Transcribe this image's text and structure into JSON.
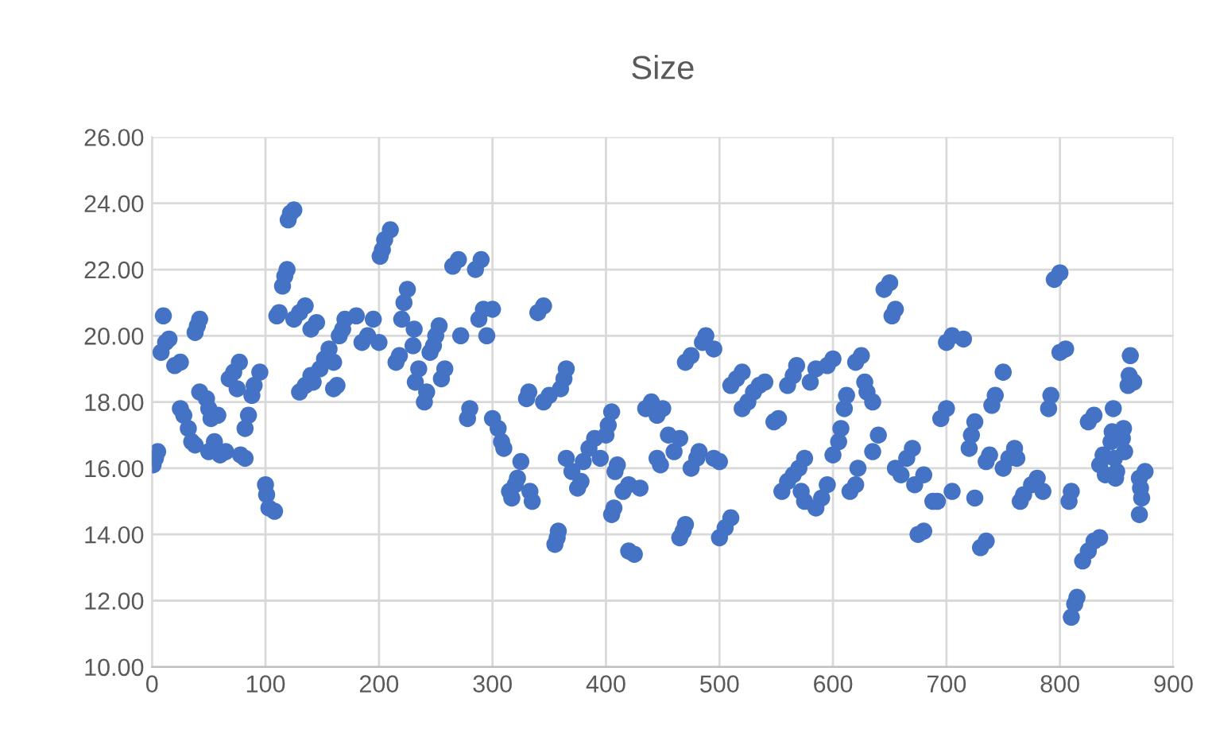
{
  "chart_data": {
    "type": "scatter",
    "title": "Size",
    "marker": "circle",
    "grid": true,
    "legend": false,
    "xlim": [
      0,
      900
    ],
    "xticks": [
      0,
      100,
      200,
      300,
      400,
      500,
      600,
      700,
      800,
      900
    ],
    "ylim": [
      10,
      26
    ],
    "yticks": [
      {
        "value": 10,
        "label": "10.00"
      },
      {
        "value": 12,
        "label": "12.00"
      },
      {
        "value": 14,
        "label": "14.00"
      },
      {
        "value": 16,
        "label": "16.00"
      },
      {
        "value": 18,
        "label": "18.00"
      },
      {
        "value": 20,
        "label": "20.00"
      },
      {
        "value": 22,
        "label": "22.00"
      },
      {
        "value": 24,
        "label": "24.00"
      },
      {
        "value": 26,
        "label": "26.00"
      }
    ],
    "series": [
      {
        "color": "#4472c4",
        "x": [
          1,
          3,
          5,
          8,
          10,
          12,
          15,
          20,
          25,
          25,
          28,
          32,
          35,
          38,
          38,
          40,
          42,
          42,
          48,
          50,
          52,
          50,
          55,
          58,
          60,
          65,
          68,
          72,
          77,
          75,
          78,
          82,
          82,
          85,
          88,
          90,
          95,
          100,
          101,
          103,
          108,
          110,
          112,
          115,
          117,
          119,
          120,
          122,
          125,
          125,
          130,
          135,
          130,
          135,
          140,
          140,
          145,
          142,
          148,
          152,
          156,
          160,
          160,
          163,
          165,
          168,
          170,
          180,
          185,
          190,
          195,
          200,
          201,
          203,
          205,
          210,
          215,
          218,
          220,
          222,
          225,
          230,
          231,
          232,
          235,
          240,
          242,
          245,
          248,
          250,
          253,
          255,
          258,
          265,
          270,
          272,
          278,
          280,
          285,
          290,
          288,
          292,
          295,
          300,
          300,
          305,
          308,
          310,
          315,
          317,
          320,
          322,
          325,
          330,
          332,
          333,
          335,
          340,
          345,
          345,
          350,
          355,
          357,
          358,
          360,
          363,
          365,
          365,
          370,
          375,
          378,
          380,
          385,
          390,
          395,
          400,
          402,
          405,
          408,
          410,
          405,
          407,
          415,
          420,
          420,
          425,
          430,
          435,
          440,
          445,
          450,
          445,
          448,
          455,
          460,
          465,
          465,
          468,
          470,
          470,
          475,
          475,
          480,
          482,
          485,
          488,
          495,
          495,
          500,
          500,
          505,
          510,
          510,
          515,
          520,
          520,
          525,
          530,
          535,
          540,
          548,
          552,
          555,
          560,
          565,
          560,
          565,
          568,
          570,
          575,
          572,
          575,
          580,
          585,
          585,
          590,
          595,
          595,
          600,
          600,
          605,
          607,
          610,
          612,
          615,
          620,
          622,
          620,
          625,
          628,
          630,
          635,
          635,
          640,
          645,
          650,
          652,
          655,
          655,
          660,
          665,
          670,
          672,
          675,
          680,
          680,
          688,
          692,
          695,
          700,
          700,
          705,
          715,
          705,
          720,
          722,
          725,
          725,
          730,
          735,
          735,
          738,
          740,
          743,
          750,
          750,
          755,
          760,
          762,
          765,
          768,
          775,
          780,
          785,
          790,
          792,
          795,
          800,
          800,
          805,
          808,
          810,
          810,
          813,
          815,
          820,
          825,
          825,
          830,
          830,
          835,
          835,
          838,
          840,
          845,
          846,
          847,
          848,
          849,
          850,
          855,
          856,
          857,
          860,
          861,
          862,
          865,
          870,
          871,
          872,
          870,
          875
        ],
        "values": [
          16.1,
          16.3,
          16.5,
          19.5,
          20.6,
          19.8,
          19.9,
          19.1,
          19.2,
          17.8,
          17.6,
          17.2,
          16.8,
          16.7,
          20.1,
          20.3,
          20.5,
          18.3,
          18.1,
          17.8,
          17.5,
          16.5,
          16.8,
          17.6,
          16.4,
          16.5,
          18.7,
          18.9,
          19.2,
          18.4,
          16.4,
          16.3,
          17.2,
          17.6,
          18.2,
          18.5,
          18.9,
          15.5,
          15.2,
          14.8,
          14.7,
          20.6,
          20.7,
          21.5,
          21.8,
          22.0,
          23.5,
          23.7,
          23.8,
          20.5,
          20.7,
          20.9,
          18.3,
          18.5,
          18.8,
          20.2,
          20.4,
          18.6,
          19.0,
          19.3,
          19.6,
          19.2,
          18.4,
          18.5,
          20.0,
          20.2,
          20.5,
          20.6,
          19.8,
          20.0,
          20.5,
          19.8,
          22.4,
          22.6,
          22.9,
          23.2,
          19.2,
          19.4,
          20.5,
          21.0,
          21.4,
          19.7,
          20.2,
          18.6,
          19.0,
          18.0,
          18.3,
          19.5,
          19.7,
          20.0,
          20.3,
          18.7,
          19.0,
          22.1,
          22.3,
          20.0,
          17.5,
          17.8,
          22.0,
          22.3,
          20.5,
          20.8,
          20.0,
          20.8,
          17.5,
          17.2,
          16.8,
          16.6,
          15.3,
          15.1,
          15.5,
          15.7,
          16.2,
          18.1,
          18.3,
          15.3,
          15.0,
          20.7,
          20.9,
          18.0,
          18.2,
          13.7,
          13.9,
          14.1,
          18.4,
          18.7,
          19.0,
          16.3,
          15.9,
          15.4,
          15.6,
          16.2,
          16.6,
          16.9,
          16.3,
          17.0,
          17.3,
          17.7,
          15.9,
          16.1,
          14.6,
          14.8,
          15.3,
          15.5,
          13.5,
          13.4,
          15.4,
          17.8,
          18.0,
          17.6,
          17.8,
          16.3,
          16.1,
          17.0,
          16.5,
          16.9,
          13.9,
          14.1,
          14.3,
          19.2,
          19.4,
          16.0,
          16.3,
          16.5,
          19.8,
          20.0,
          19.6,
          16.3,
          16.2,
          13.9,
          14.2,
          14.5,
          18.5,
          18.7,
          18.9,
          17.8,
          18.0,
          18.3,
          18.5,
          18.6,
          17.4,
          17.5,
          15.3,
          15.6,
          15.8,
          18.5,
          18.8,
          19.1,
          16.0,
          16.3,
          15.3,
          15.0,
          18.6,
          19.0,
          14.8,
          15.1,
          15.5,
          19.1,
          19.3,
          16.4,
          16.8,
          17.2,
          17.8,
          18.2,
          15.3,
          15.5,
          16.0,
          19.2,
          19.4,
          18.6,
          18.3,
          18.0,
          16.5,
          17.0,
          21.4,
          21.6,
          20.6,
          20.8,
          16.0,
          15.8,
          16.3,
          16.6,
          15.5,
          14.0,
          14.1,
          15.8,
          15.0,
          15.0,
          17.5,
          17.8,
          19.8,
          20.0,
          19.9,
          15.3,
          16.6,
          17.0,
          17.4,
          15.1,
          13.6,
          13.8,
          16.2,
          16.4,
          17.9,
          18.2,
          18.9,
          16.0,
          16.3,
          16.6,
          16.3,
          15.0,
          15.2,
          15.5,
          15.7,
          15.3,
          17.8,
          18.2,
          21.7,
          21.9,
          19.5,
          19.6,
          15.0,
          15.3,
          11.5,
          11.9,
          12.1,
          13.2,
          13.5,
          17.4,
          17.6,
          13.8,
          13.9,
          16.1,
          16.4,
          15.8,
          16.8,
          17.1,
          17.8,
          16.3,
          15.7,
          15.9,
          16.9,
          17.2,
          16.5,
          18.5,
          18.8,
          19.4,
          18.6,
          15.7,
          15.4,
          15.1,
          14.6,
          15.9
        ]
      }
    ]
  }
}
